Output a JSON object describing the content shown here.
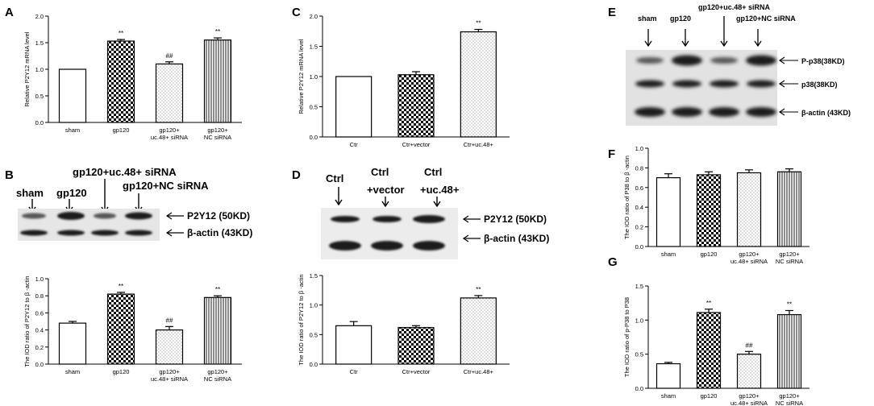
{
  "panel_labels": {
    "A": "A",
    "B": "B",
    "C": "C",
    "D": "D",
    "E": "E",
    "F": "F",
    "G": "G"
  },
  "blot_B": {
    "lanes": [
      "sham",
      "gp120",
      "gp120+uc.48+ siRNA",
      "gp120+NC siRNA"
    ],
    "bands": [
      "P2Y12 (50KD)",
      "β-actin (43KD)"
    ]
  },
  "blot_D": {
    "lanes": [
      "Ctrl",
      "Ctrl",
      "+vector",
      "Ctrl",
      "+uc.48+"
    ],
    "bands": [
      "P2Y12 (50KD)",
      "β-actin (43KD)"
    ]
  },
  "blot_E": {
    "lanes": [
      "sham",
      "gp120",
      "gp120+uc.48+ siRNA",
      "gp120+NC siRNA"
    ],
    "bands": [
      "P-p38(38KD)",
      "p38(38KD)",
      "β-actin (43KD)"
    ]
  },
  "chart_data": [
    {
      "id": "A",
      "type": "bar",
      "ylabel": "Relative P2Y12 mRNA level",
      "ylim": [
        0,
        2.0
      ],
      "yticks": [
        "0.0",
        "0.5",
        "1.0",
        "1.5",
        "2.0"
      ],
      "categories": [
        [
          "sham"
        ],
        [
          "gp120"
        ],
        [
          "gp120+",
          "uc.48+ siRNA"
        ],
        [
          "gp120+",
          "NC siRNA"
        ]
      ],
      "values": [
        1.0,
        1.53,
        1.1,
        1.55
      ],
      "errors": [
        0.0,
        0.03,
        0.04,
        0.04
      ],
      "annotations": [
        "",
        "**",
        "##",
        "**"
      ]
    },
    {
      "id": "B",
      "type": "bar",
      "ylabel": "The IOD ratio of  P2Y12 to β -actin",
      "ylim": [
        0,
        1.0
      ],
      "yticks": [
        "0.0",
        "0.2",
        "0.4",
        "0.6",
        "0.8",
        "1.0"
      ],
      "categories": [
        [
          "sham"
        ],
        [
          "gp120"
        ],
        [
          "gp120+",
          "uc.48+ siRNA"
        ],
        [
          "gp120+",
          "NC siRNA"
        ]
      ],
      "values": [
        0.48,
        0.82,
        0.4,
        0.78
      ],
      "errors": [
        0.02,
        0.02,
        0.04,
        0.02
      ],
      "annotations": [
        "",
        "**",
        "##",
        "**"
      ]
    },
    {
      "id": "C",
      "type": "bar",
      "ylabel": "Relative P2Y12 mRNA level",
      "ylim": [
        0,
        2.0
      ],
      "yticks": [
        "0.0",
        "0.5",
        "1.0",
        "1.5",
        "2.0"
      ],
      "categories": [
        [
          "Ctr"
        ],
        [
          "Ctr+vector"
        ],
        [
          "Ctr+uc.48+"
        ]
      ],
      "values": [
        1.0,
        1.03,
        1.74
      ],
      "errors": [
        0.0,
        0.05,
        0.04
      ],
      "annotations": [
        "",
        "",
        "**"
      ]
    },
    {
      "id": "D",
      "type": "bar",
      "ylabel": "The IOD ratio of P2Y12 to β -actin",
      "ylim": [
        0,
        1.5
      ],
      "yticks": [
        "0.0",
        "0.5",
        "1.0",
        "1.5"
      ],
      "categories": [
        [
          "Ctr"
        ],
        [
          "Ctr+vector"
        ],
        [
          "Ctr+uc.48+"
        ]
      ],
      "values": [
        0.65,
        0.62,
        1.12
      ],
      "errors": [
        0.07,
        0.03,
        0.04
      ],
      "annotations": [
        "",
        "",
        "**"
      ]
    },
    {
      "id": "F",
      "type": "bar",
      "ylabel": "The IOD ratio of  P38 to β -actin",
      "ylim": [
        0,
        1.0
      ],
      "yticks": [
        "0.0",
        "0.2",
        "0.4",
        "0.6",
        "0.8",
        "1.0"
      ],
      "categories": [
        [
          "sham"
        ],
        [
          "gp120"
        ],
        [
          "gp120+",
          "uc.48+ siRNA"
        ],
        [
          "gp120+",
          "NC siRNA"
        ]
      ],
      "values": [
        0.7,
        0.73,
        0.75,
        0.76
      ],
      "errors": [
        0.04,
        0.03,
        0.03,
        0.03
      ],
      "annotations": [
        "",
        "",
        "",
        ""
      ]
    },
    {
      "id": "G",
      "type": "bar",
      "ylabel": "The IOD ratio of  p-P38 to P38",
      "ylim": [
        0,
        1.5
      ],
      "yticks": [
        "0.0",
        "0.5",
        "1.0",
        "1.5"
      ],
      "categories": [
        [
          "sham"
        ],
        [
          "gp120"
        ],
        [
          "gp120+",
          "uc.48+ siRNA"
        ],
        [
          "gp120+",
          "NC siRNA"
        ]
      ],
      "values": [
        0.36,
        1.11,
        0.5,
        1.08
      ],
      "errors": [
        0.02,
        0.05,
        0.04,
        0.06
      ],
      "annotations": [
        "",
        "**",
        "##",
        "**"
      ]
    }
  ]
}
